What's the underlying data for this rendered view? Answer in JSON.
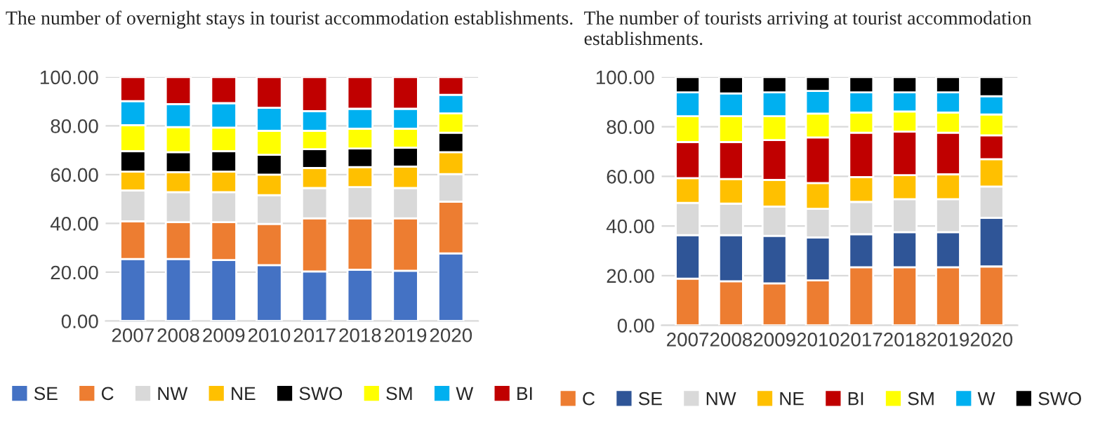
{
  "chart_data": [
    {
      "type": "bar",
      "stacked": true,
      "title": "The number of overnight stays in tourist accommodation establishments.",
      "categories": [
        "2007",
        "2008",
        "2009",
        "2010",
        "2017",
        "2018",
        "2019",
        "2020"
      ],
      "ylim": [
        0,
        100
      ],
      "yticks": [
        {
          "value": 0,
          "label": "0.00"
        },
        {
          "value": 20,
          "label": "20.00"
        },
        {
          "value": 40,
          "label": "40.00"
        },
        {
          "value": 60,
          "label": "60.00"
        },
        {
          "value": 80,
          "label": "80.00"
        },
        {
          "value": 100,
          "label": "100.00"
        }
      ],
      "grid": "y",
      "legend": "bottom",
      "series": [
        {
          "name": "SE",
          "color": "#4472c4",
          "values": [
            25.4,
            25.4,
            25.0,
            22.9,
            20.3,
            21.0,
            20.6,
            27.7
          ]
        },
        {
          "name": "C",
          "color": "#ed7d31",
          "values": [
            15.5,
            15.1,
            15.5,
            16.9,
            21.8,
            21.1,
            21.5,
            21.2
          ]
        },
        {
          "name": "NW",
          "color": "#d9d9d9",
          "values": [
            12.6,
            12.3,
            12.3,
            11.8,
            12.4,
            12.8,
            12.4,
            11.3
          ]
        },
        {
          "name": "NE",
          "color": "#ffc000",
          "values": [
            7.7,
            8.2,
            8.4,
            8.4,
            8.2,
            8.2,
            8.8,
            9.0
          ]
        },
        {
          "name": "SWO",
          "color": "#000000",
          "values": [
            8.4,
            8.2,
            8.4,
            8.1,
            7.7,
            7.6,
            7.8,
            8.0
          ]
        },
        {
          "name": "SM",
          "color": "#ffff00",
          "values": [
            10.7,
            10.3,
            9.7,
            9.9,
            7.6,
            8.1,
            7.7,
            7.9
          ]
        },
        {
          "name": "W",
          "color": "#00b0f0",
          "values": [
            9.8,
            9.4,
            10.0,
            9.4,
            8.0,
            8.2,
            8.2,
            7.6
          ]
        },
        {
          "name": "BI",
          "color": "#c00000",
          "values": [
            9.9,
            11.1,
            10.7,
            12.6,
            14.0,
            13.0,
            13.0,
            7.3
          ]
        }
      ]
    },
    {
      "type": "bar",
      "stacked": true,
      "title": "The number of tourists arriving at tourist accommodation establishments.",
      "categories": [
        "2007",
        "2008",
        "2009",
        "2010",
        "2017",
        "2018",
        "2019",
        "2020"
      ],
      "ylim": [
        0,
        100
      ],
      "yticks": [
        {
          "value": 0,
          "label": "0.00"
        },
        {
          "value": 20,
          "label": "20.00"
        },
        {
          "value": 40,
          "label": "40.00"
        },
        {
          "value": 60,
          "label": "60.00"
        },
        {
          "value": 80,
          "label": "80.00"
        },
        {
          "value": 100,
          "label": "100.00"
        }
      ],
      "grid": "y",
      "legend": "bottom",
      "series": [
        {
          "name": "C",
          "color": "#ed7d31",
          "values": [
            18.8,
            17.7,
            16.9,
            18.1,
            23.4,
            23.4,
            23.4,
            23.7
          ]
        },
        {
          "name": "SE",
          "color": "#2f5597",
          "values": [
            17.5,
            18.6,
            19.1,
            17.3,
            13.3,
            14.1,
            14.1,
            19.6
          ]
        },
        {
          "name": "NW",
          "color": "#d9d9d9",
          "values": [
            13.0,
            12.7,
            11.8,
            11.5,
            13.0,
            13.3,
            13.3,
            12.6
          ]
        },
        {
          "name": "NE",
          "color": "#ffc000",
          "values": [
            10.0,
            9.9,
            10.8,
            10.4,
            10.0,
            9.7,
            10.0,
            11.0
          ]
        },
        {
          "name": "BI",
          "color": "#c00000",
          "values": [
            14.5,
            14.9,
            16.0,
            18.4,
            17.9,
            17.5,
            16.8,
            9.6
          ]
        },
        {
          "name": "SM",
          "color": "#ffff00",
          "values": [
            10.4,
            10.4,
            9.6,
            9.6,
            8.1,
            8.1,
            8.1,
            8.4
          ]
        },
        {
          "name": "W",
          "color": "#00b0f0",
          "values": [
            9.6,
            9.2,
            9.6,
            9.1,
            8.1,
            7.7,
            8.1,
            7.4
          ]
        },
        {
          "name": "SWO",
          "color": "#000000",
          "values": [
            6.2,
            6.6,
            6.2,
            5.6,
            6.2,
            6.2,
            6.2,
            7.7
          ]
        }
      ]
    }
  ]
}
